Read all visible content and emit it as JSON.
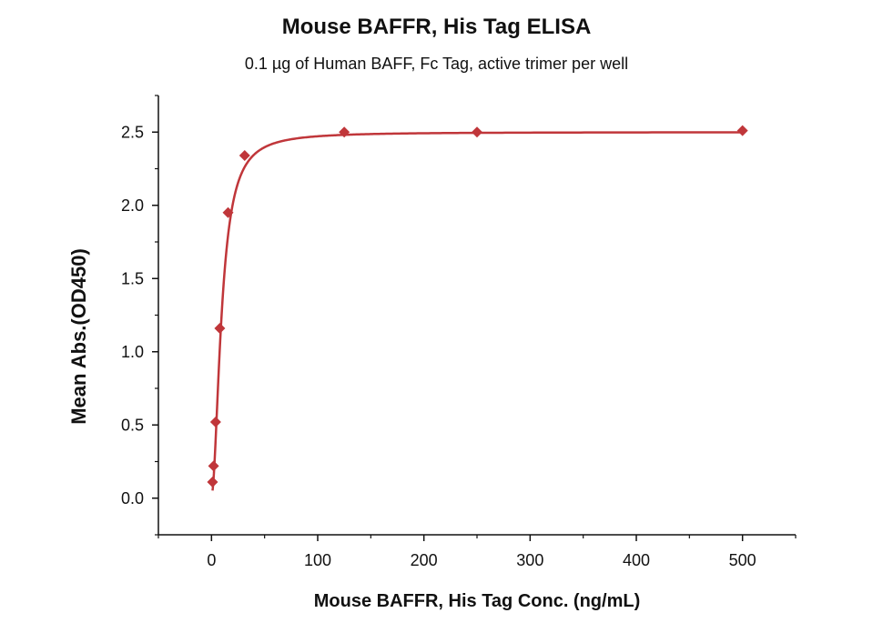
{
  "chart_data": {
    "type": "line",
    "title": "Mouse BAFFR, His Tag ELISA",
    "subtitle": "0.1 µg of Human BAFF, Fc Tag, active trimer per well",
    "xlabel": "Mouse BAFFR, His Tag Conc. (ng/mL)",
    "ylabel": "Mean Abs.(OD450)",
    "xlim": [
      -50,
      550
    ],
    "ylim": [
      -0.25,
      2.75
    ],
    "xticks": [
      0,
      100,
      200,
      300,
      400,
      500
    ],
    "yticks": [
      0.0,
      0.5,
      1.0,
      1.5,
      2.0,
      2.5
    ],
    "xtick_labels": [
      "0",
      "100",
      "200",
      "300",
      "400",
      "500"
    ],
    "ytick_labels": [
      "0.0",
      "0.5",
      "1.0",
      "1.5",
      "2.0",
      "2.5"
    ],
    "grid": false,
    "series": [
      {
        "color": "#c0363a",
        "marker": "diamond",
        "points": [
          {
            "x": 0.98,
            "y": 0.11
          },
          {
            "x": 1.95,
            "y": 0.22
          },
          {
            "x": 3.9,
            "y": 0.52
          },
          {
            "x": 7.8,
            "y": 1.16
          },
          {
            "x": 15.6,
            "y": 1.95
          },
          {
            "x": 31.25,
            "y": 2.34
          },
          {
            "x": 125,
            "y": 2.5
          },
          {
            "x": 250,
            "y": 2.5
          },
          {
            "x": 500,
            "y": 2.51
          }
        ]
      }
    ]
  }
}
